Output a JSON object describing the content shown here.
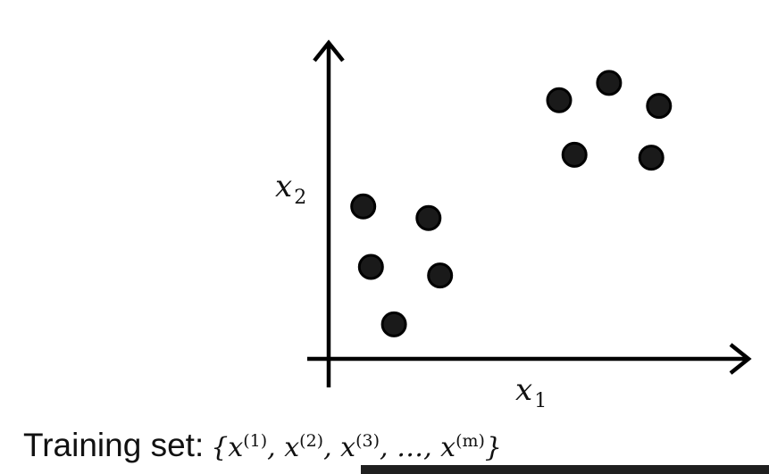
{
  "chart_data": {
    "type": "scatter",
    "title": "",
    "xlabel": "x",
    "xlabel_sub": "1",
    "ylabel": "x",
    "ylabel_sub": "2",
    "xlim": [
      0,
      10
    ],
    "ylim": [
      0,
      10
    ],
    "grid": false,
    "ticks": false,
    "marker_color": "#1a1a1a",
    "points": [
      {
        "x": 0.9,
        "y": 5.3
      },
      {
        "x": 2.6,
        "y": 4.9
      },
      {
        "x": 1.1,
        "y": 3.2
      },
      {
        "x": 2.9,
        "y": 2.9
      },
      {
        "x": 1.7,
        "y": 1.2
      },
      {
        "x": 6.0,
        "y": 9.0
      },
      {
        "x": 7.3,
        "y": 9.6
      },
      {
        "x": 8.6,
        "y": 8.8
      },
      {
        "x": 6.4,
        "y": 7.1
      },
      {
        "x": 8.4,
        "y": 7.0
      }
    ]
  },
  "caption": {
    "label": "Training set:",
    "formula": {
      "open": "{",
      "close": "}",
      "variable": "x",
      "terms": [
        "(1)",
        "(2)",
        "(3)"
      ],
      "ellipsis": "…",
      "last_term": "(m)"
    }
  },
  "subtitle_bar": {
    "text": "· ·  ·   ·  · · ·"
  }
}
